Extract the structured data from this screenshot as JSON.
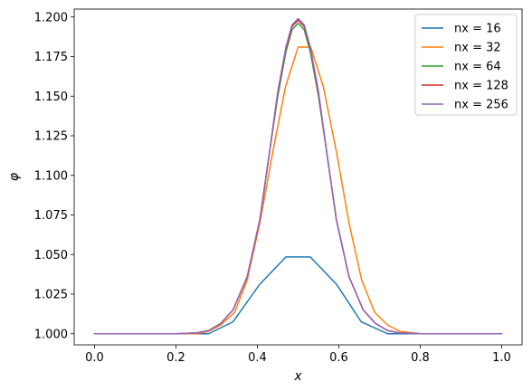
{
  "chart_data": {
    "type": "line",
    "title": "",
    "xlabel": "x",
    "ylabel": "φ",
    "xlim": [
      -0.05,
      1.05
    ],
    "ylim": [
      0.993,
      1.205
    ],
    "xticks": [
      0.0,
      0.2,
      0.4,
      0.6,
      0.8,
      1.0
    ],
    "xtick_labels": [
      "0.0",
      "0.2",
      "0.4",
      "0.6",
      "0.8",
      "1.0"
    ],
    "yticks": [
      1.0,
      1.025,
      1.05,
      1.075,
      1.1,
      1.125,
      1.15,
      1.175,
      1.2
    ],
    "ytick_labels": [
      "1.000",
      "1.025",
      "1.050",
      "1.075",
      "1.100",
      "1.125",
      "1.150",
      "1.175",
      "1.200"
    ],
    "legend_position": "top-right",
    "grid": false,
    "series": [
      {
        "name": "nx = 16",
        "color": "#1f77b4",
        "x": [
          0.0,
          0.0625,
          0.125,
          0.1875,
          0.25,
          0.28,
          0.34,
          0.405,
          0.47,
          0.53,
          0.595,
          0.655,
          0.72,
          0.78,
          0.84,
          0.905,
          0.97,
          1.0
        ],
        "y": [
          1.0,
          1.0,
          1.0,
          1.0,
          1.0,
          1.0,
          1.0075,
          1.031,
          1.0485,
          1.0485,
          1.031,
          1.0075,
          1.0,
          1.0,
          1.0,
          1.0,
          1.0,
          1.0
        ]
      },
      {
        "name": "nx = 32",
        "color": "#ff7f0e",
        "x": [
          0.0,
          0.1,
          0.2,
          0.25,
          0.28,
          0.31,
          0.344,
          0.375,
          0.406,
          0.438,
          0.469,
          0.5,
          0.531,
          0.562,
          0.594,
          0.625,
          0.656,
          0.688,
          0.72,
          0.75,
          0.8,
          0.9,
          1.0
        ],
        "y": [
          1.0,
          1.0,
          1.0,
          1.0,
          1.0015,
          1.0055,
          1.0135,
          1.034,
          1.07,
          1.115,
          1.156,
          1.181,
          1.181,
          1.156,
          1.115,
          1.07,
          1.034,
          1.0135,
          1.0055,
          1.0015,
          1.0,
          1.0,
          1.0
        ]
      },
      {
        "name": "nx = 64",
        "color": "#2ca02c",
        "x": [
          0.0,
          0.1,
          0.2,
          0.25,
          0.28,
          0.31,
          0.34,
          0.375,
          0.406,
          0.43,
          0.45,
          0.47,
          0.485,
          0.5,
          0.515,
          0.53,
          0.55,
          0.57,
          0.594,
          0.625,
          0.66,
          0.69,
          0.72,
          0.75,
          0.8,
          0.9,
          1.0
        ],
        "y": [
          1.0,
          1.0,
          1.0,
          1.0005,
          1.002,
          1.0065,
          1.015,
          1.036,
          1.072,
          1.115,
          1.15,
          1.178,
          1.192,
          1.196,
          1.192,
          1.178,
          1.15,
          1.115,
          1.072,
          1.036,
          1.015,
          1.0065,
          1.002,
          1.0005,
          1.0,
          1.0,
          1.0
        ]
      },
      {
        "name": "nx = 128",
        "color": "#d62728",
        "x": [
          0.0,
          0.1,
          0.2,
          0.25,
          0.28,
          0.31,
          0.34,
          0.375,
          0.406,
          0.43,
          0.45,
          0.47,
          0.485,
          0.5,
          0.515,
          0.53,
          0.55,
          0.57,
          0.594,
          0.625,
          0.66,
          0.69,
          0.72,
          0.75,
          0.8,
          0.9,
          1.0
        ],
        "y": [
          1.0,
          1.0,
          1.0,
          1.0005,
          1.002,
          1.0065,
          1.015,
          1.036,
          1.072,
          1.115,
          1.152,
          1.18,
          1.194,
          1.198,
          1.194,
          1.18,
          1.152,
          1.115,
          1.072,
          1.036,
          1.015,
          1.0065,
          1.002,
          1.0005,
          1.0,
          1.0,
          1.0
        ]
      },
      {
        "name": "nx = 256",
        "color": "#9467bd",
        "x": [
          0.0,
          0.1,
          0.2,
          0.25,
          0.28,
          0.31,
          0.34,
          0.375,
          0.406,
          0.43,
          0.45,
          0.47,
          0.485,
          0.5,
          0.515,
          0.53,
          0.55,
          0.57,
          0.594,
          0.625,
          0.66,
          0.69,
          0.72,
          0.75,
          0.8,
          0.9,
          1.0
        ],
        "y": [
          1.0,
          1.0,
          1.0,
          1.0005,
          1.002,
          1.0065,
          1.015,
          1.036,
          1.072,
          1.115,
          1.153,
          1.181,
          1.195,
          1.199,
          1.195,
          1.181,
          1.153,
          1.115,
          1.072,
          1.036,
          1.015,
          1.0065,
          1.002,
          1.0005,
          1.0,
          1.0,
          1.0
        ]
      }
    ]
  }
}
